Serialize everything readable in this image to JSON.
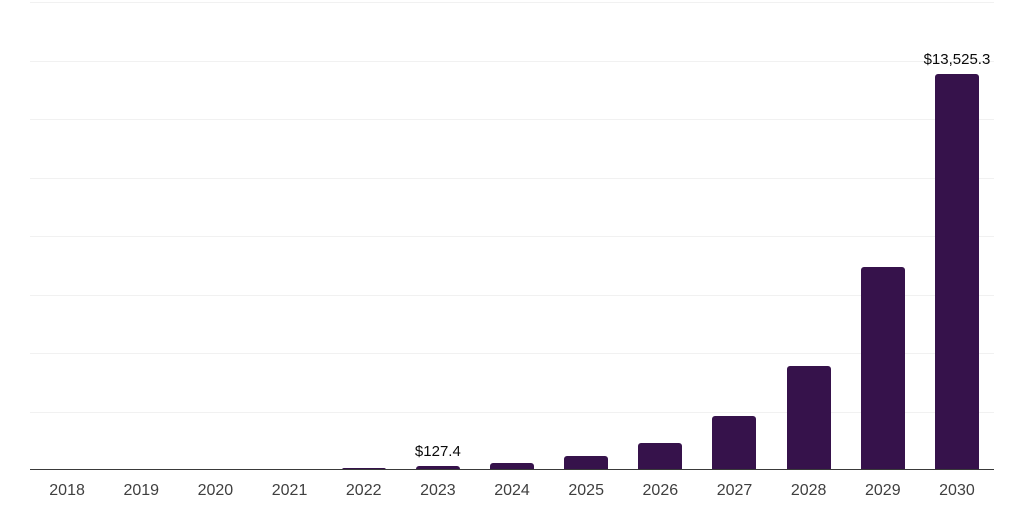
{
  "theme": {
    "background": "#ffffff",
    "bar_color": "#36124b",
    "grid_color": "#f1f1f1",
    "axis_color": "#3a3a3a",
    "tick_label_color": "#3f3f3f",
    "value_label_color": "#0a0a0a"
  },
  "chart_data": {
    "type": "bar",
    "categories": [
      "2018",
      "2019",
      "2020",
      "2021",
      "2022",
      "2023",
      "2024",
      "2025",
      "2026",
      "2027",
      "2028",
      "2029",
      "2030"
    ],
    "values": [
      4.5,
      8.9,
      17.3,
      33.6,
      65.4,
      127.4,
      248.1,
      483.1,
      940.7,
      1831.9,
      3567.2,
      6946.4,
      13525.3
    ],
    "labeled_values_note": "only 2023 and 2030 carry printed labels; other values estimated from bar heights",
    "value_labels": [
      {
        "category": "2023",
        "text": "$127.4"
      },
      {
        "category": "2030",
        "text": "$13,525.3"
      }
    ],
    "title": "",
    "xlabel": "",
    "ylabel": "",
    "ylim": [
      0,
      16000
    ],
    "gridline_interval": 2000,
    "grid": "horizontal",
    "y_tick_labels_visible": false,
    "legend": "none"
  }
}
